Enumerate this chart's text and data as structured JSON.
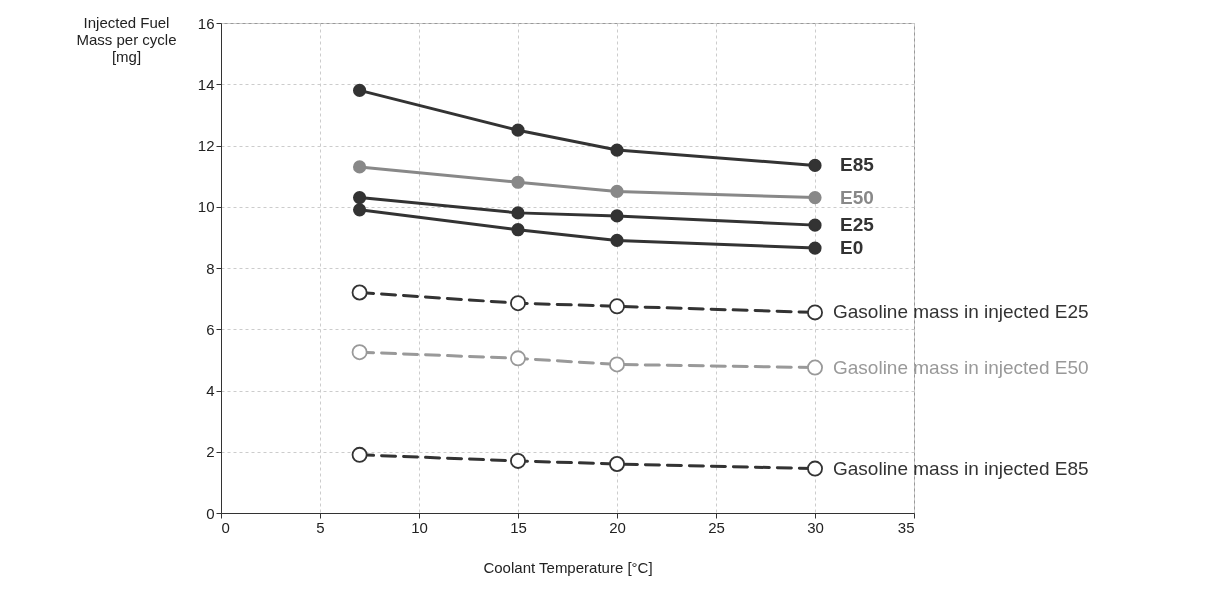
{
  "chart_data": {
    "type": "line",
    "xlabel": "Coolant Temperature [°C]",
    "ylabel": "Injected Fuel Mass per cycle [mg]",
    "x": [
      7,
      15,
      20,
      30
    ],
    "series": [
      {
        "name": "E85",
        "color": "#333333",
        "line_style": "solid",
        "values": [
          13.8,
          12.5,
          11.85,
          11.35
        ]
      },
      {
        "name": "E50",
        "color": "#888888",
        "line_style": "solid",
        "values": [
          11.3,
          10.8,
          10.5,
          10.3
        ]
      },
      {
        "name": "E25",
        "color": "#333333",
        "line_style": "solid",
        "values": [
          10.3,
          9.8,
          9.7,
          9.4
        ]
      },
      {
        "name": "E0",
        "color": "#333333",
        "line_style": "solid",
        "values": [
          9.9,
          9.25,
          8.9,
          8.65
        ]
      },
      {
        "name": "Gasoline mass in injected E25",
        "color": "#333333",
        "line_style": "dashed",
        "values": [
          7.2,
          6.85,
          6.75,
          6.55
        ]
      },
      {
        "name": "Gasoline mass in injected E50",
        "color": "#999999",
        "line_style": "dashed",
        "values": [
          5.25,
          5.05,
          4.85,
          4.75
        ]
      },
      {
        "name": "Gasoline mass in injected E85",
        "color": "#333333",
        "line_style": "dashed",
        "values": [
          1.9,
          1.7,
          1.6,
          1.45
        ]
      }
    ],
    "xlim": [
      0,
      35
    ],
    "xticks": [
      0,
      5,
      10,
      15,
      20,
      25,
      30,
      35
    ],
    "ylim": [
      0,
      16
    ],
    "yticks": [
      0,
      2,
      4,
      6,
      8,
      10,
      12,
      14,
      16
    ],
    "grid": true,
    "legend": false,
    "marker": "circle"
  }
}
